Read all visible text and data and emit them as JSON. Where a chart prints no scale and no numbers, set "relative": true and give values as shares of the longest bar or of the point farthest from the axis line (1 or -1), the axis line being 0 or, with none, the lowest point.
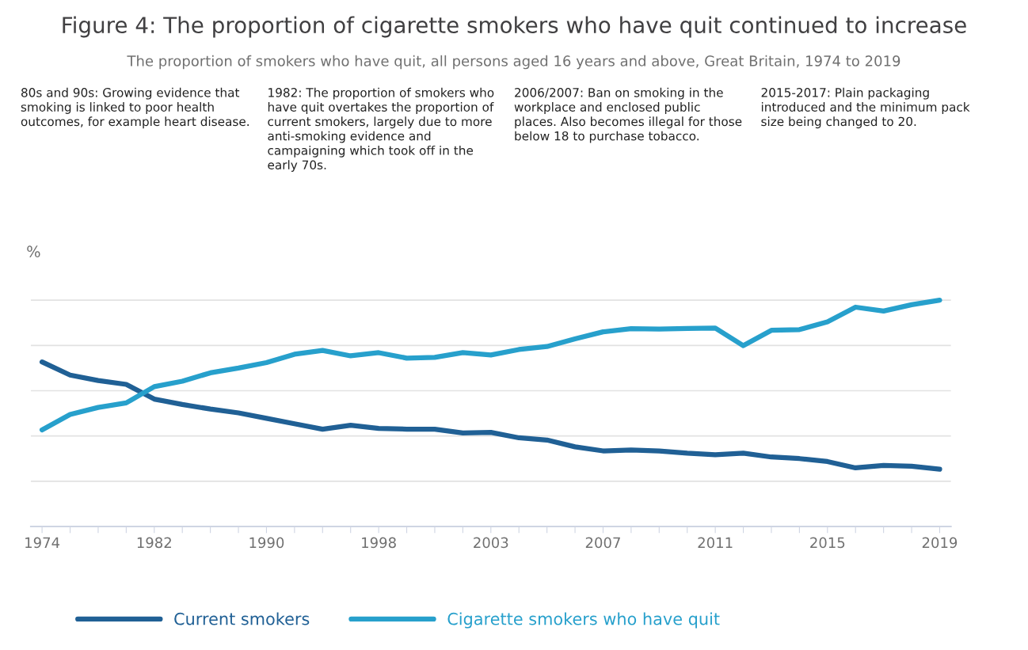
{
  "chart_data": {
    "type": "line",
    "title": "Figure 4: The proportion of cigarette smokers who have quit continued to increase",
    "subtitle": "The proportion of smokers who have quit, all persons aged 16 years and above, Great Britain, 1974 to 2019",
    "ylabel": "%",
    "annotations": [
      "80s and 90s: Growing evidence that smoking is linked to poor health outcomes, for example heart disease.",
      "1982: The proportion of smokers who have quit overtakes the proportion of current smokers, largely due to more anti-smoking evidence and campaigning which took off in the early 70s.",
      "2006/2007: Ban on smoking in the workplace and enclosed public places. Also becomes illegal for those below 18 to purchase tobacco.",
      "2015-2017: Plain packaging introduced and the minimum pack size being changed to 20."
    ],
    "categories": [
      "1974",
      null,
      null,
      null,
      "1982",
      null,
      null,
      null,
      "1990",
      null,
      null,
      null,
      "1998",
      null,
      null,
      null,
      "2003",
      null,
      null,
      null,
      "2007",
      null,
      null,
      null,
      "2011",
      null,
      null,
      null,
      "2015",
      null,
      null,
      null,
      "2019"
    ],
    "relative": true,
    "series": [
      {
        "name": "Current smokers",
        "color": "#206095",
        "values": [
          0.727,
          0.669,
          0.645,
          0.628,
          0.563,
          0.539,
          0.519,
          0.502,
          0.478,
          0.454,
          0.43,
          0.447,
          0.433,
          0.43,
          0.43,
          0.413,
          0.416,
          0.392,
          0.382,
          0.352,
          0.334,
          0.338,
          0.334,
          0.324,
          0.317,
          0.324,
          0.307,
          0.3,
          0.287,
          0.259,
          0.27,
          0.266,
          0.253
        ]
      },
      {
        "name": "Cigarette smokers who have quit",
        "color": "#27a0cc",
        "values": [
          0.427,
          0.495,
          0.526,
          0.546,
          0.618,
          0.642,
          0.679,
          0.7,
          0.724,
          0.761,
          0.778,
          0.754,
          0.768,
          0.744,
          0.747,
          0.768,
          0.758,
          0.782,
          0.795,
          0.829,
          0.86,
          0.874,
          0.872,
          0.875,
          0.877,
          0.799,
          0.867,
          0.87,
          0.904,
          0.969,
          0.952,
          0.98,
          1.0
        ]
      }
    ],
    "grid": "y",
    "legend": "bottom",
    "marker": "none",
    "line_style": "solid"
  }
}
